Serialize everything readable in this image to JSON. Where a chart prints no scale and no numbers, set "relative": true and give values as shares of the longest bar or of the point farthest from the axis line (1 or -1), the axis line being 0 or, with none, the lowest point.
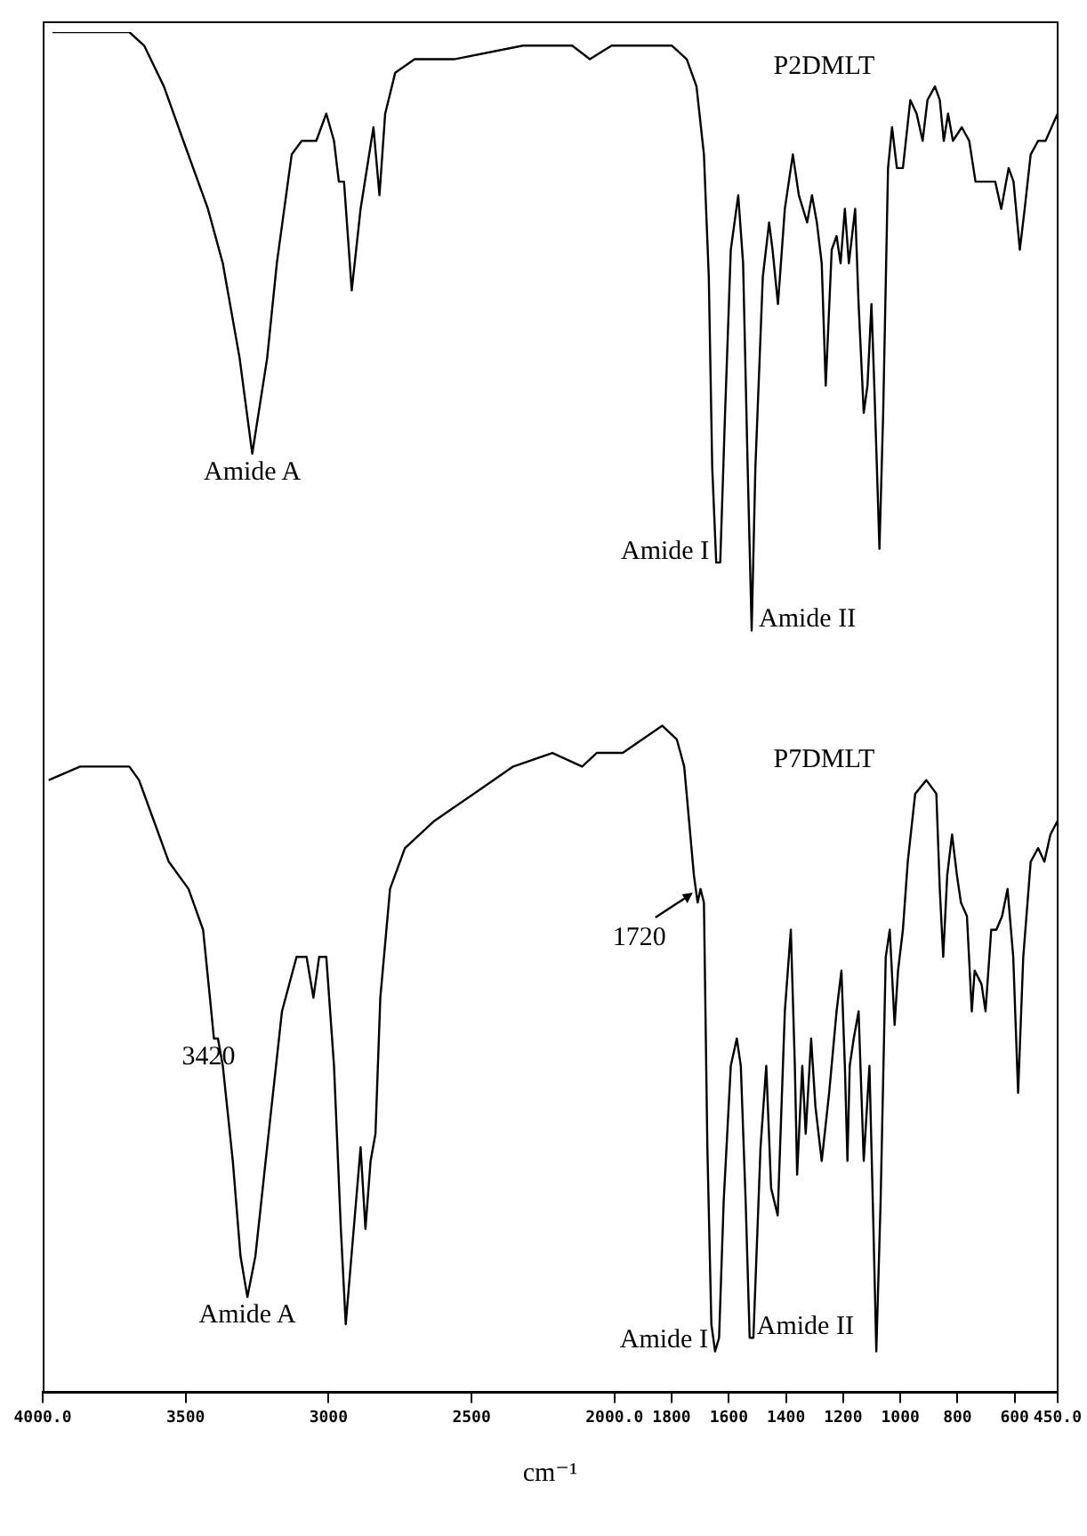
{
  "chart_data": {
    "type": "line",
    "relative": true,
    "marker": "none",
    "xlabel": "cm⁻¹",
    "xlim": [
      4000,
      450
    ],
    "xticks": [
      {
        "value": 4000,
        "label": "4000.0"
      },
      3500,
      3000,
      2500,
      {
        "value": 2000,
        "label": "2000.0"
      },
      1800,
      1600,
      1400,
      1200,
      1000,
      800,
      600,
      {
        "value": 450,
        "label": "450.0"
      }
    ],
    "series": [
      {
        "name": "P2DMLT",
        "color": "#000000",
        "x": [
          3966,
          3697,
          3645,
          3576,
          3508,
          3422,
          3370,
          3311,
          3267,
          3215,
          3181,
          3129,
          3094,
          3043,
          3008,
          2981,
          2964,
          2946,
          2919,
          2888,
          2843,
          2822,
          2802,
          2767,
          2699,
          2561,
          2320,
          2148,
          2086,
          2010,
          1902,
          1799,
          1747,
          1713,
          1687,
          1670,
          1658,
          1644,
          1630,
          1613,
          1593,
          1567,
          1550,
          1534,
          1520,
          1507,
          1481,
          1459,
          1447,
          1428,
          1404,
          1376,
          1355,
          1326,
          1309,
          1292,
          1275,
          1261,
          1240,
          1223,
          1209,
          1194,
          1180,
          1158,
          1146,
          1128,
          1115,
          1101,
          1091,
          1073,
          1060,
          1043,
          1029,
          1012,
          991,
          965,
          943,
          922,
          905,
          879,
          862,
          848,
          833,
          816,
          785,
          759,
          737,
          699,
          668,
          647,
          621,
          604,
          582,
          565,
          544,
          518,
          492,
          450
        ],
        "values": [
          1.0,
          1.0,
          0.99,
          0.96,
          0.92,
          0.87,
          0.83,
          0.76,
          0.69,
          0.76,
          0.83,
          0.91,
          0.92,
          0.92,
          0.94,
          0.92,
          0.89,
          0.89,
          0.81,
          0.87,
          0.93,
          0.88,
          0.94,
          0.97,
          0.98,
          0.98,
          0.99,
          0.99,
          0.98,
          0.99,
          0.99,
          0.99,
          0.98,
          0.96,
          0.91,
          0.82,
          0.68,
          0.61,
          0.61,
          0.72,
          0.84,
          0.88,
          0.83,
          0.68,
          0.56,
          0.68,
          0.82,
          0.86,
          0.84,
          0.8,
          0.87,
          0.91,
          0.88,
          0.86,
          0.88,
          0.86,
          0.83,
          0.74,
          0.84,
          0.85,
          0.83,
          0.87,
          0.83,
          0.87,
          0.8,
          0.72,
          0.74,
          0.8,
          0.74,
          0.62,
          0.72,
          0.9,
          0.93,
          0.9,
          0.9,
          0.95,
          0.94,
          0.92,
          0.95,
          0.96,
          0.95,
          0.92,
          0.94,
          0.92,
          0.93,
          0.92,
          0.89,
          0.89,
          0.89,
          0.87,
          0.9,
          0.89,
          0.84,
          0.87,
          0.91,
          0.92,
          0.92,
          0.94
        ]
      },
      {
        "name": "P7DMLT",
        "color": "#000000",
        "x": [
          3979,
          3869,
          3697,
          3663,
          3611,
          3559,
          3490,
          3439,
          3415,
          3401,
          3387,
          3370,
          3335,
          3308,
          3284,
          3256,
          3215,
          3163,
          3112,
          3077,
          3053,
          3033,
          3008,
          2981,
          2957,
          2940,
          2912,
          2888,
          2871,
          2853,
          2836,
          2819,
          2785,
          2733,
          2630,
          2492,
          2354,
          2217,
          2113,
          2062,
          1971,
          1902,
          1833,
          1782,
          1756,
          1739,
          1722,
          1709,
          1699,
          1687,
          1675,
          1661,
          1648,
          1634,
          1618,
          1593,
          1572,
          1558,
          1541,
          1527,
          1514,
          1489,
          1469,
          1452,
          1429,
          1404,
          1383,
          1369,
          1361,
          1343,
          1331,
          1312,
          1297,
          1275,
          1249,
          1223,
          1206,
          1194,
          1185,
          1177,
          1163,
          1146,
          1128,
          1108,
          1094,
          1084,
          1069,
          1051,
          1037,
          1020,
          1008,
          991,
          974,
          948,
          909,
          874,
          862,
          850,
          836,
          819,
          802,
          788,
          767,
          750,
          740,
          716,
          702,
          682,
          664,
          644,
          625,
          605,
          588,
          570,
          544,
          518,
          496,
          475,
          450
        ],
        "values": [
          0.45,
          0.46,
          0.46,
          0.45,
          0.42,
          0.39,
          0.37,
          0.34,
          0.29,
          0.26,
          0.26,
          0.24,
          0.17,
          0.1,
          0.07,
          0.1,
          0.18,
          0.28,
          0.32,
          0.32,
          0.29,
          0.32,
          0.32,
          0.24,
          0.12,
          0.05,
          0.12,
          0.18,
          0.12,
          0.17,
          0.19,
          0.29,
          0.37,
          0.4,
          0.42,
          0.44,
          0.46,
          0.47,
          0.46,
          0.47,
          0.47,
          0.48,
          0.49,
          0.48,
          0.46,
          0.42,
          0.38,
          0.36,
          0.37,
          0.36,
          0.18,
          0.05,
          0.03,
          0.04,
          0.14,
          0.24,
          0.26,
          0.24,
          0.14,
          0.04,
          0.04,
          0.18,
          0.24,
          0.15,
          0.13,
          0.28,
          0.34,
          0.24,
          0.16,
          0.24,
          0.19,
          0.26,
          0.21,
          0.17,
          0.22,
          0.28,
          0.31,
          0.24,
          0.17,
          0.24,
          0.26,
          0.28,
          0.17,
          0.24,
          0.12,
          0.03,
          0.14,
          0.32,
          0.34,
          0.27,
          0.31,
          0.34,
          0.39,
          0.44,
          0.45,
          0.44,
          0.37,
          0.32,
          0.38,
          0.41,
          0.38,
          0.36,
          0.35,
          0.28,
          0.31,
          0.3,
          0.28,
          0.34,
          0.34,
          0.35,
          0.37,
          0.32,
          0.22,
          0.32,
          0.39,
          0.4,
          0.39,
          0.41,
          0.42
        ]
      }
    ],
    "annotations": [
      {
        "text": "Amide A",
        "x": 3267,
        "y": 0.69
      },
      {
        "text": "Amide I",
        "x": 1644,
        "y": 0.61
      },
      {
        "text": "Amide II",
        "x": 1520,
        "y": 0.56
      },
      {
        "text": "3420",
        "x": 3420,
        "y": 0.26
      },
      {
        "text": "1720",
        "x": 1720,
        "y": 0.37
      },
      {
        "text": "Amide A",
        "x": 3284,
        "y": 0.07
      },
      {
        "text": "Amide I",
        "x": 1648,
        "y": 0.03
      },
      {
        "text": "Amide II",
        "x": 1527,
        "y": 0.04
      }
    ]
  }
}
